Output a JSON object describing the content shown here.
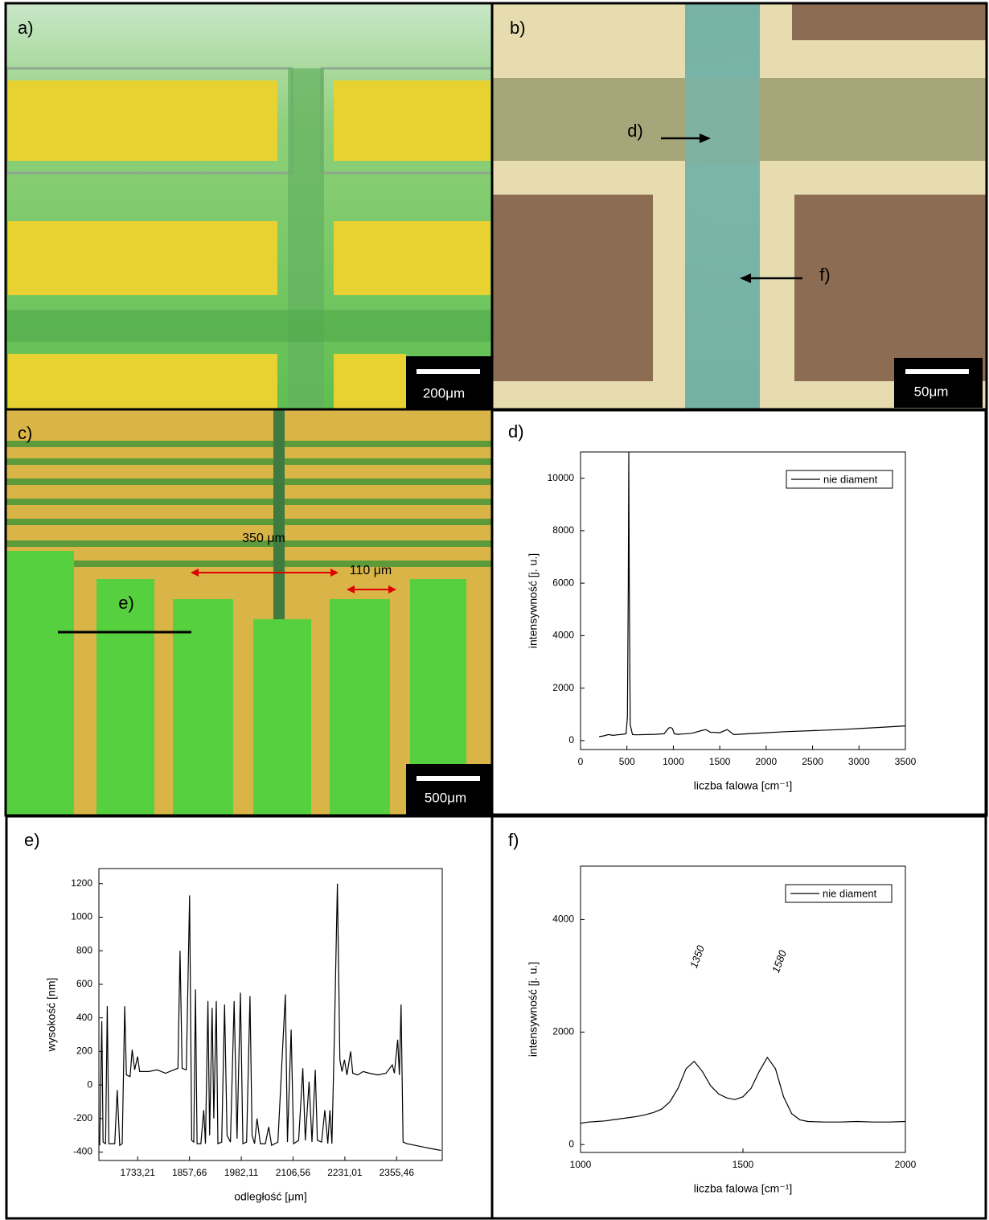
{
  "images": [
    {
      "label": "a)",
      "scale_bar": "200μm"
    },
    {
      "label": "b)",
      "scale_bar": "50μm",
      "markers": [
        "d)",
        "f)"
      ]
    },
    {
      "label": "c)",
      "scale_bar": "500μm",
      "markers": [
        "e)"
      ]
    }
  ],
  "chart_data": [
    {
      "type": "line",
      "panel_label": "d)",
      "xlabel": "liczba falowa [cm⁻¹]",
      "ylabel": "intensywność [j. u.]",
      "x": [
        200,
        250,
        300,
        350,
        400,
        450,
        490,
        505,
        515,
        520,
        525,
        535,
        560,
        600,
        700,
        800,
        900,
        950,
        970,
        990,
        1010,
        1050,
        1100,
        1200,
        1300,
        1350,
        1400,
        1500,
        1580,
        1650,
        1700,
        1800,
        2000,
        2200,
        2500,
        2800,
        3000,
        3200,
        3500
      ],
      "series": [
        {
          "name": "nie diament",
          "color": "#000000",
          "values": [
            150,
            180,
            230,
            200,
            220,
            240,
            260,
            900,
            6000,
            11000,
            6000,
            600,
            230,
            220,
            230,
            240,
            260,
            480,
            500,
            460,
            260,
            240,
            250,
            280,
            380,
            420,
            320,
            300,
            420,
            230,
            240,
            260,
            300,
            340,
            380,
            420,
            460,
            500,
            560
          ]
        }
      ],
      "xlim": [
        0,
        3500
      ],
      "ylim": [
        -340,
        11000
      ],
      "xticks": [
        0,
        500,
        1000,
        1500,
        2000,
        2500,
        3000,
        3500
      ],
      "yticks": [
        0,
        2000,
        4000,
        6000,
        8000,
        10000
      ]
    },
    {
      "type": "line",
      "panel_label": "e)",
      "xlabel": "odległość [μm]",
      "ylabel": "wysokość [nm]",
      "annotations": [
        "350 μm",
        "110 μm"
      ],
      "x": [
        1642,
        1647,
        1650,
        1656,
        1660,
        1664,
        1678,
        1684,
        1690,
        1696,
        1702,
        1706,
        1715,
        1720,
        1726,
        1733,
        1738,
        1760,
        1780,
        1800,
        1820,
        1830,
        1835,
        1840,
        1850,
        1858,
        1863,
        1868,
        1872,
        1876,
        1885,
        1892,
        1896,
        1902,
        1906,
        1912,
        1916,
        1922,
        1926,
        1935,
        1942,
        1948,
        1956,
        1965,
        1972,
        1980,
        1986,
        1995,
        2003,
        2008,
        2014,
        2020,
        2028,
        2040,
        2048,
        2055,
        2070,
        2088,
        2093,
        2102,
        2108,
        2120,
        2130,
        2136,
        2145,
        2152,
        2160,
        2165,
        2175,
        2183,
        2190,
        2195,
        2200,
        2206,
        2213,
        2219,
        2224,
        2230,
        2236,
        2245,
        2250,
        2262,
        2275,
        2290,
        2310,
        2330,
        2345,
        2350,
        2358,
        2362,
        2366,
        2371,
        2380,
        2400,
        2420,
        2440,
        2462
      ],
      "series": [
        {
          "color": "#000000",
          "values": [
            -360,
            380,
            -340,
            -350,
            470,
            -350,
            -350,
            -30,
            -360,
            -350,
            470,
            60,
            50,
            210,
            90,
            170,
            80,
            80,
            90,
            70,
            90,
            100,
            800,
            100,
            90,
            1130,
            -330,
            -340,
            570,
            -350,
            -350,
            -150,
            -350,
            500,
            -300,
            460,
            -200,
            500,
            -350,
            -340,
            480,
            -300,
            -340,
            500,
            -320,
            550,
            -350,
            -340,
            530,
            -300,
            -350,
            -200,
            -350,
            -350,
            -250,
            -360,
            -340,
            540,
            -340,
            330,
            -350,
            -330,
            100,
            -330,
            20,
            -340,
            90,
            -330,
            -340,
            -150,
            -350,
            -150,
            -350,
            300,
            1200,
            150,
            80,
            150,
            60,
            200,
            70,
            60,
            80,
            70,
            60,
            70,
            120,
            70,
            270,
            60,
            480,
            -340,
            -350,
            -360,
            -370,
            -380,
            -390
          ]
        }
      ],
      "xlim": [
        1640,
        2465
      ],
      "ylim": [
        -450,
        1290
      ],
      "xticks": [
        {
          "value": 1733.21,
          "label": "1733,21"
        },
        {
          "value": 1857.66,
          "label": "1857,66"
        },
        {
          "value": 1982.11,
          "label": "1982,11"
        },
        {
          "value": 2106.56,
          "label": "2106,56"
        },
        {
          "value": 2231.01,
          "label": "2231,01"
        },
        {
          "value": 2355.46,
          "label": "2355,46"
        }
      ],
      "yticks": [
        -400,
        -200,
        0,
        200,
        400,
        600,
        800,
        1000,
        1200
      ]
    },
    {
      "type": "line",
      "panel_label": "f)",
      "xlabel": "liczba falowa [cm⁻¹]",
      "ylabel": "intensywność [j. u.]",
      "annotations": [
        "1350",
        "1580"
      ],
      "x": [
        1000,
        1025,
        1050,
        1075,
        1100,
        1125,
        1150,
        1175,
        1200,
        1225,
        1250,
        1275,
        1300,
        1325,
        1350,
        1375,
        1400,
        1425,
        1450,
        1475,
        1500,
        1525,
        1550,
        1575,
        1600,
        1625,
        1650,
        1675,
        1700,
        1750,
        1800,
        1850,
        1900,
        1950,
        2000
      ],
      "series": [
        {
          "name": "nie diament",
          "color": "#000000",
          "values": [
            380,
            400,
            410,
            420,
            440,
            460,
            480,
            500,
            530,
            570,
            630,
            760,
            1000,
            1350,
            1480,
            1300,
            1050,
            900,
            830,
            800,
            850,
            1000,
            1300,
            1550,
            1350,
            850,
            550,
            440,
            410,
            400,
            400,
            410,
            400,
            400,
            410
          ]
        }
      ],
      "xlim": [
        1000,
        2000
      ],
      "ylim": [
        -140,
        4950
      ],
      "xticks": [
        1000,
        1500,
        2000
      ],
      "yticks": [
        0,
        2000,
        4000
      ]
    }
  ]
}
